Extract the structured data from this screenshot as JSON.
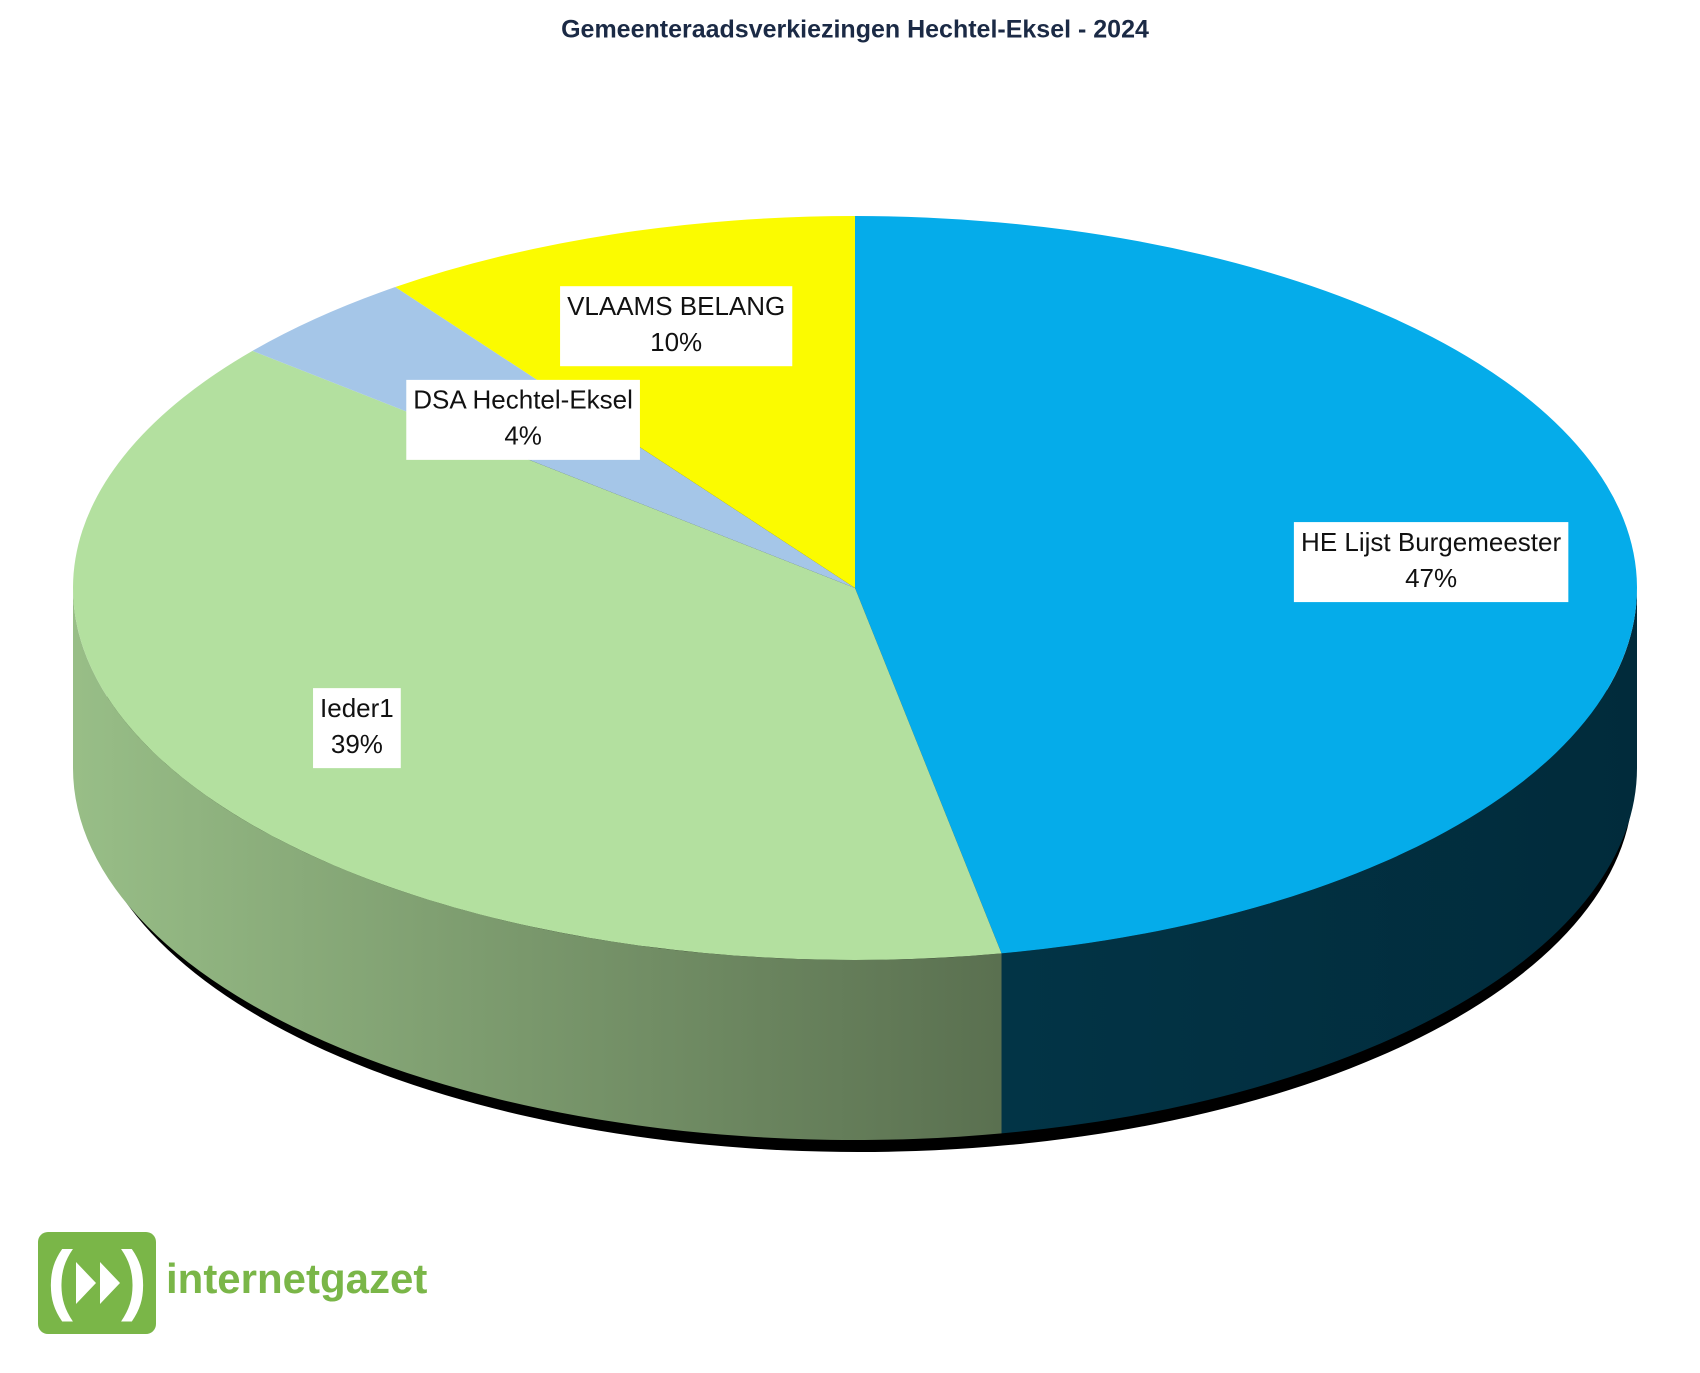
{
  "chart_data": {
    "type": "pie3d",
    "title": "Gemeenteraadsverkiezingen Hechtel-Eksel - 2024",
    "categories": [
      "HE Lijst Burgemeester",
      "Ieder1",
      "DSA Hechtel-Eksel",
      "VLAAMS BELANG"
    ],
    "values": [
      47,
      39,
      4,
      10
    ],
    "value_labels": [
      "47%",
      "39%",
      "4%",
      "10%"
    ],
    "colors": [
      "#05acea",
      "#b3e09f",
      "#a5c6e8",
      "#fbfb00"
    ]
  },
  "logo": "internetgazet"
}
